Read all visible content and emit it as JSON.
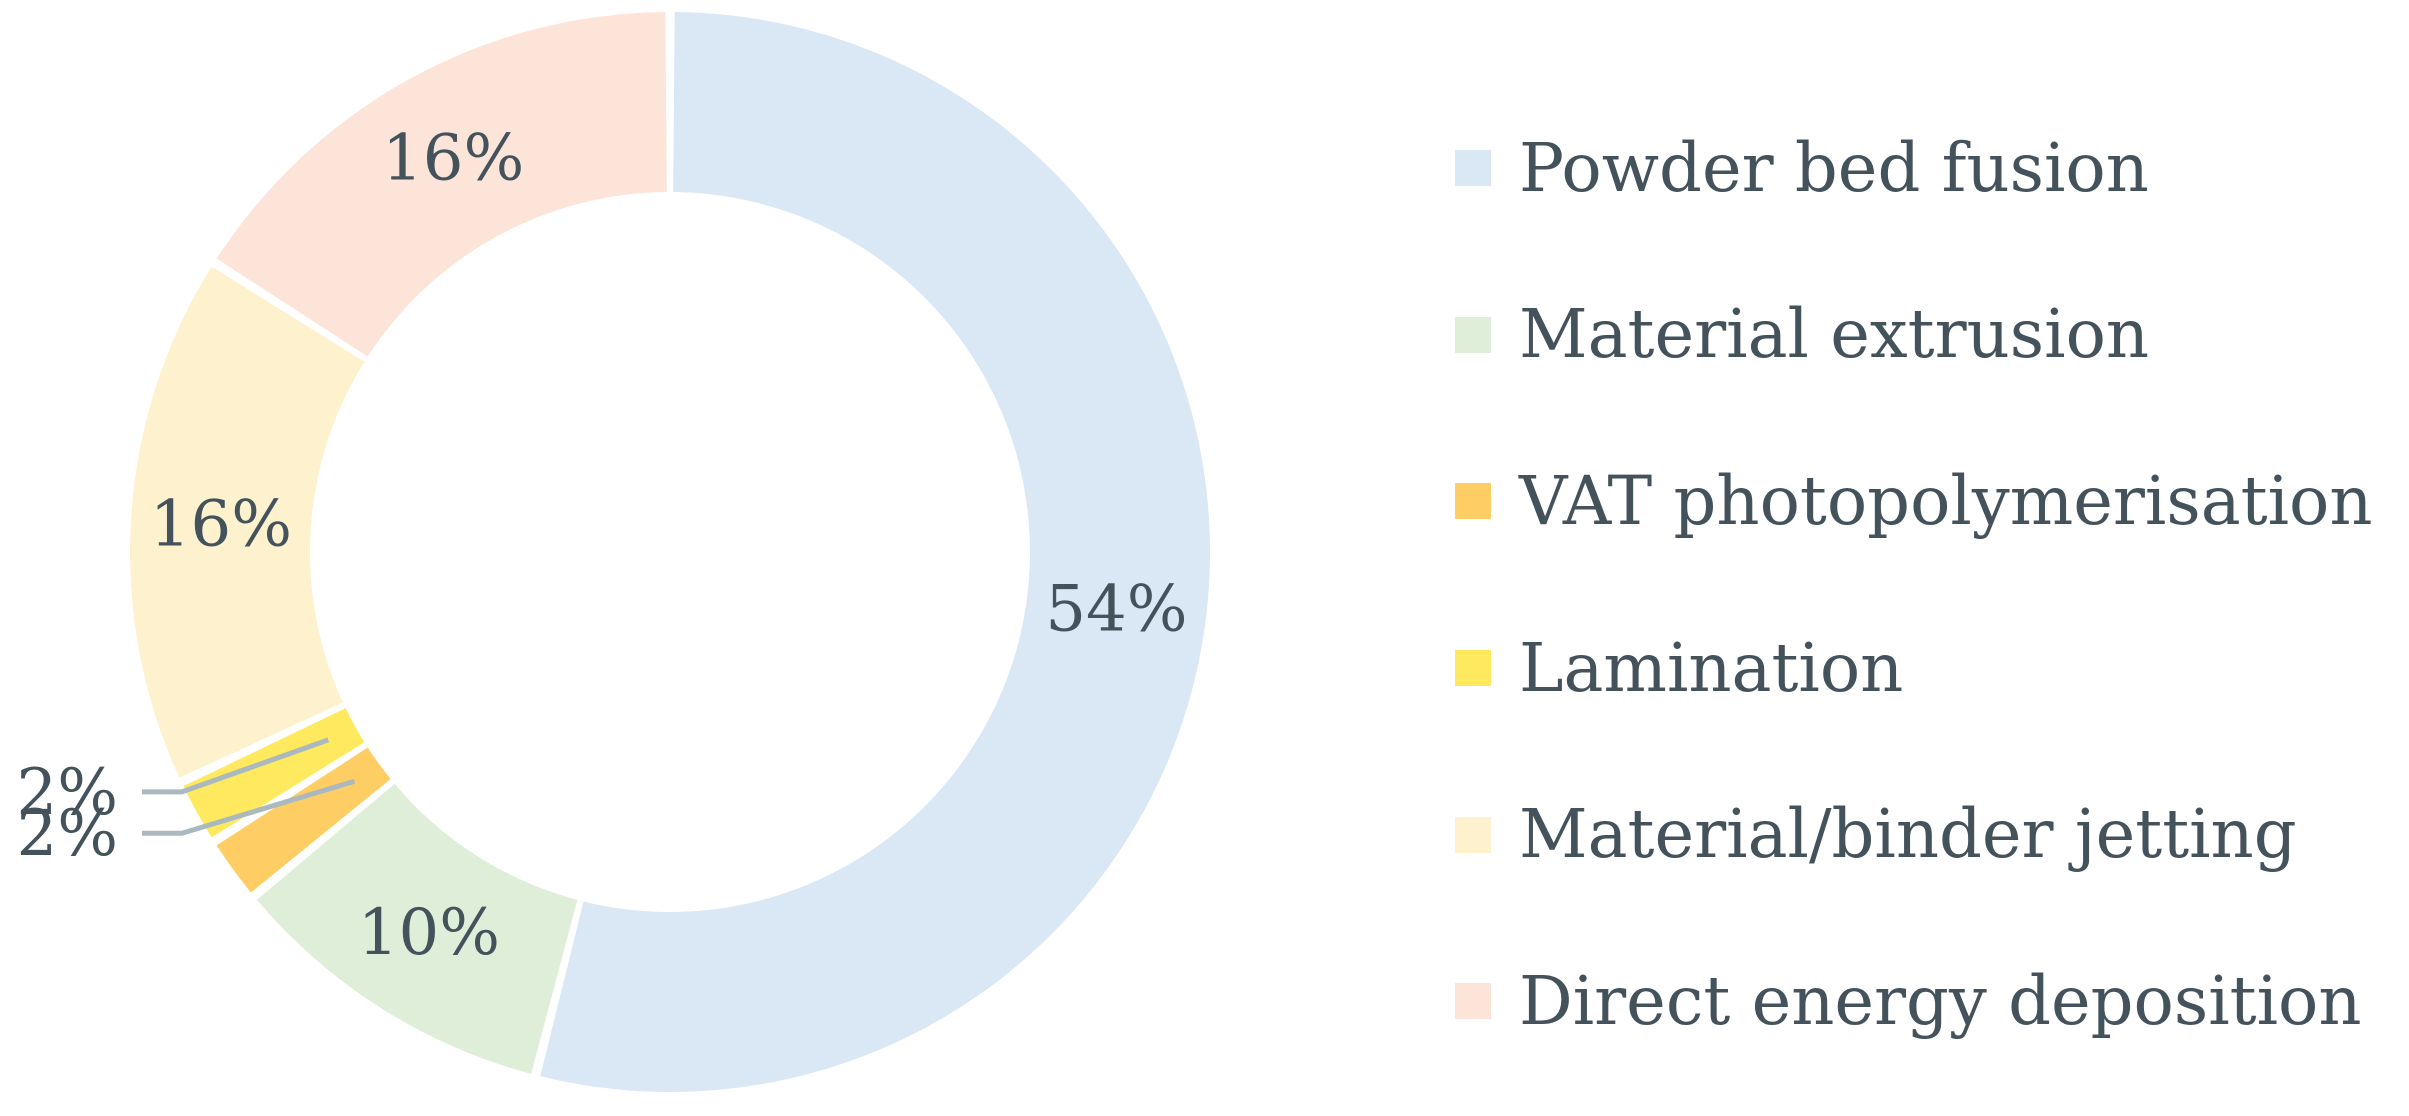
{
  "chart_data": {
    "type": "pie",
    "donut": true,
    "legend_position": "right",
    "series": [
      {
        "name": "Powder bed fusion",
        "value": 54,
        "label": "54%",
        "color": "#dae8f6"
      },
      {
        "name": "Material extrusion",
        "value": 10,
        "label": "10%",
        "color": "#dfeed9"
      },
      {
        "name": "VAT photopolymerisation",
        "value": 2,
        "label": "2%",
        "color": "#fece64"
      },
      {
        "name": "Lamination",
        "value": 2,
        "label": "2%",
        "color": "#ffe95e"
      },
      {
        "name": "Material/binder jetting",
        "value": 16,
        "label": "16%",
        "color": "#fdf2cd"
      },
      {
        "name": "Direct energy deposition",
        "value": 16,
        "label": "16%",
        "color": "#fde4d9"
      }
    ]
  }
}
